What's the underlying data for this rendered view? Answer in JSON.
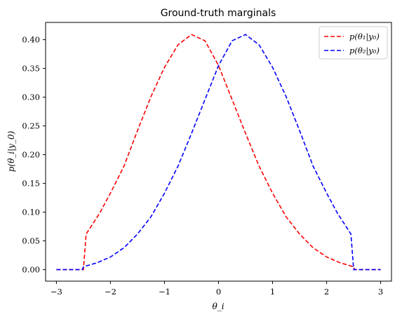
{
  "chart_data": {
    "type": "line",
    "title": "Ground-truth marginals",
    "xlabel": "θ_i",
    "ylabel": "p(θ_i|y_0)",
    "xlim": [
      -3.2,
      3.2
    ],
    "ylim": [
      -0.02,
      0.43
    ],
    "xticks": [
      -3,
      -2,
      -1,
      0,
      1,
      2,
      3
    ],
    "xtick_labels": [
      "−3",
      "−2",
      "−1",
      "0",
      "1",
      "2",
      "3"
    ],
    "yticks": [
      0.0,
      0.05,
      0.1,
      0.15,
      0.2,
      0.25,
      0.3,
      0.35,
      0.4
    ],
    "ytick_labels": [
      "0.00",
      "0.05",
      "0.10",
      "0.15",
      "0.20",
      "0.25",
      "0.30",
      "0.35",
      "0.40"
    ],
    "grid": false,
    "legend_position": "top-right",
    "series": [
      {
        "name": "p(θ₁|y₀)",
        "color": "#ff0000",
        "style": "dashed",
        "x": [
          -3.0,
          -2.5,
          -2.45,
          -2.2,
          -2.0,
          -1.75,
          -1.5,
          -1.25,
          -1.0,
          -0.75,
          -0.5,
          -0.25,
          0.0,
          0.25,
          0.5,
          0.75,
          1.0,
          1.25,
          1.5,
          1.75,
          2.0,
          2.25,
          2.5,
          2.52,
          3.0
        ],
        "y": [
          0.0,
          0.0,
          0.062,
          0.098,
          0.133,
          0.18,
          0.242,
          0.301,
          0.352,
          0.391,
          0.409,
          0.398,
          0.355,
          0.296,
          0.237,
          0.18,
          0.133,
          0.092,
          0.062,
          0.038,
          0.022,
          0.012,
          0.005,
          0.0,
          0.0
        ]
      },
      {
        "name": "p(θ₂|y₀)",
        "color": "#0000ff",
        "style": "dashed",
        "x": [
          -3.0,
          -2.52,
          -2.5,
          -2.25,
          -2.0,
          -1.75,
          -1.5,
          -1.25,
          -1.0,
          -0.75,
          -0.5,
          -0.25,
          0.0,
          0.25,
          0.5,
          0.75,
          1.0,
          1.25,
          1.5,
          1.75,
          2.0,
          2.2,
          2.45,
          2.5,
          3.0
        ],
        "y": [
          0.0,
          0.0,
          0.005,
          0.012,
          0.022,
          0.038,
          0.062,
          0.092,
          0.133,
          0.18,
          0.237,
          0.296,
          0.355,
          0.398,
          0.409,
          0.391,
          0.352,
          0.301,
          0.242,
          0.18,
          0.133,
          0.098,
          0.062,
          0.0,
          0.0
        ]
      }
    ]
  }
}
